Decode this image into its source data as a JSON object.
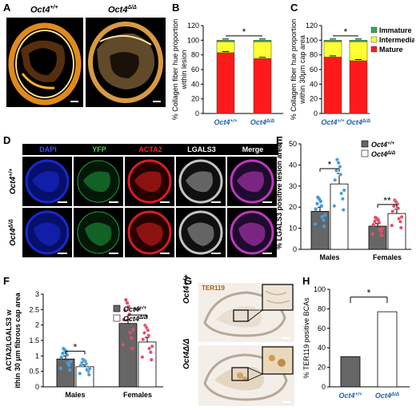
{
  "panels": {
    "A": {
      "letter": "A",
      "labels": [
        "Oct4",
        "+/+",
        "Oct4",
        "Δ/Δ"
      ]
    },
    "B": {
      "letter": "B",
      "sig": "*",
      "chart_data": {
        "type": "bar",
        "stacked": true,
        "categories": [
          "Oct4+/+",
          "Oct4Δ/Δ"
        ],
        "series": [
          {
            "name": "Mature",
            "values": [
              83,
              75
            ],
            "color": "#ff1a1a"
          },
          {
            "name": "Intermediate",
            "values": [
              15,
              23
            ],
            "color": "#ffff33"
          },
          {
            "name": "Immature",
            "values": [
              2,
              2
            ],
            "color": "#33aa55"
          }
        ],
        "ylabel": "% Collagen fiber hue proportion within lesion",
        "ylim": [
          0,
          120
        ],
        "yticks": [
          0,
          20,
          40,
          60,
          80,
          100,
          120
        ]
      }
    },
    "C": {
      "letter": "C",
      "sig": "*",
      "legend": [
        "Immature",
        "Intermediate",
        "Mature"
      ],
      "chart_data": {
        "type": "bar",
        "stacked": true,
        "categories": [
          "Oct4+/+",
          "Oct4Δ/Δ"
        ],
        "series": [
          {
            "name": "Mature",
            "values": [
              77,
              72
            ],
            "color": "#ff1a1a"
          },
          {
            "name": "Intermediate",
            "values": [
              21,
              26
            ],
            "color": "#ffff33"
          },
          {
            "name": "Immature",
            "values": [
              2,
              2
            ],
            "color": "#33aa55"
          }
        ],
        "ylabel": "% Collagen fiber hue proportion within 30μm cap area",
        "ylim": [
          0,
          120
        ],
        "yticks": [
          0,
          20,
          40,
          60,
          80,
          100,
          120
        ]
      }
    },
    "D": {
      "letter": "D",
      "channels": [
        "DAPI",
        "YFP",
        "ACTA2",
        "LGALS3",
        "Merge"
      ],
      "channel_colors": [
        "#3355ff",
        "#33dd55",
        "#ff2222",
        "#ffffff",
        "#ffffff"
      ],
      "rows": [
        "Oct4+/+",
        "Oct4Δ/Δ"
      ]
    },
    "E": {
      "letter": "E",
      "legend": [
        "Oct4+/+",
        "Oct4Δ/Δ"
      ],
      "groups": [
        "Males",
        "Females"
      ],
      "sig": [
        "*",
        "**"
      ],
      "chart_data": {
        "type": "bar",
        "categories": [
          "Males",
          "Females"
        ],
        "series": [
          {
            "name": "Oct4+/+",
            "values": [
              18,
              11
            ],
            "sem": [
              2,
              1.2
            ],
            "color": "#666666"
          },
          {
            "name": "Oct4Δ/Δ",
            "values": [
              31,
              17
            ],
            "sem": [
              5,
              2
            ],
            "color": "#ffffff"
          }
        ],
        "ylabel": "% LGALS3 positive lesion area",
        "ylim": [
          0,
          50
        ],
        "yticks": [
          0,
          10,
          20,
          30,
          40,
          50
        ]
      }
    },
    "F": {
      "letter": "F",
      "legend": [
        "Oct4+/+",
        "Oct4Δ/Δ"
      ],
      "groups": [
        "Males",
        "Females"
      ],
      "sig": [
        "*",
        "**"
      ],
      "chart_data": {
        "type": "bar",
        "categories": [
          "Males",
          "Females"
        ],
        "series": [
          {
            "name": "Oct4+/+",
            "values": [
              0.9,
              2.05
            ],
            "sem": [
              0.1,
              0.12
            ],
            "color": "#666666"
          },
          {
            "name": "Oct4Δ/Δ",
            "values": [
              0.65,
              1.45
            ],
            "sem": [
              0.06,
              0.15
            ],
            "color": "#ffffff"
          }
        ],
        "ylabel": "ACTA2/LGALS3 within 30 μm fibrous cap area",
        "ylim": [
          0,
          3
        ],
        "yticks": [
          0,
          0.5,
          1,
          1.5,
          2,
          2.5,
          3
        ]
      }
    },
    "G": {
      "letter": "G",
      "stain": "TER119",
      "rows": [
        "Oct4+/+",
        "Oct4Δ/Δ"
      ]
    },
    "H": {
      "letter": "H",
      "sig": "*",
      "chart_data": {
        "type": "bar",
        "categories": [
          "Oct4+/+",
          "Oct4Δ/Δ"
        ],
        "values": [
          31,
          77
        ],
        "colors": [
          "#666666",
          "#ffffff"
        ],
        "ylabel": "% TER119 positive BCAs",
        "ylim": [
          0,
          100
        ],
        "yticks": [
          0,
          20,
          40,
          60,
          80,
          100
        ]
      }
    }
  }
}
